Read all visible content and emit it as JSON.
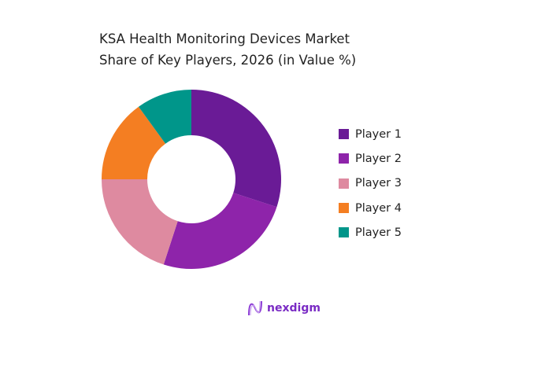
{
  "chart_data": {
    "type": "pie",
    "variant": "donut",
    "title": "KSA Health Monitoring Devices Market Share of Key Players, 2026 (in Value %)",
    "categories": [
      "Player 1",
      "Player 2",
      "Player 3",
      "Player 4",
      "Player 5"
    ],
    "values": [
      30,
      25,
      20,
      15,
      10
    ],
    "colors": [
      "#6a1b96",
      "#8e24aa",
      "#de8aa0",
      "#f47e22",
      "#00968a"
    ],
    "legend": "right"
  },
  "logo": {
    "text": "nexdigm"
  }
}
